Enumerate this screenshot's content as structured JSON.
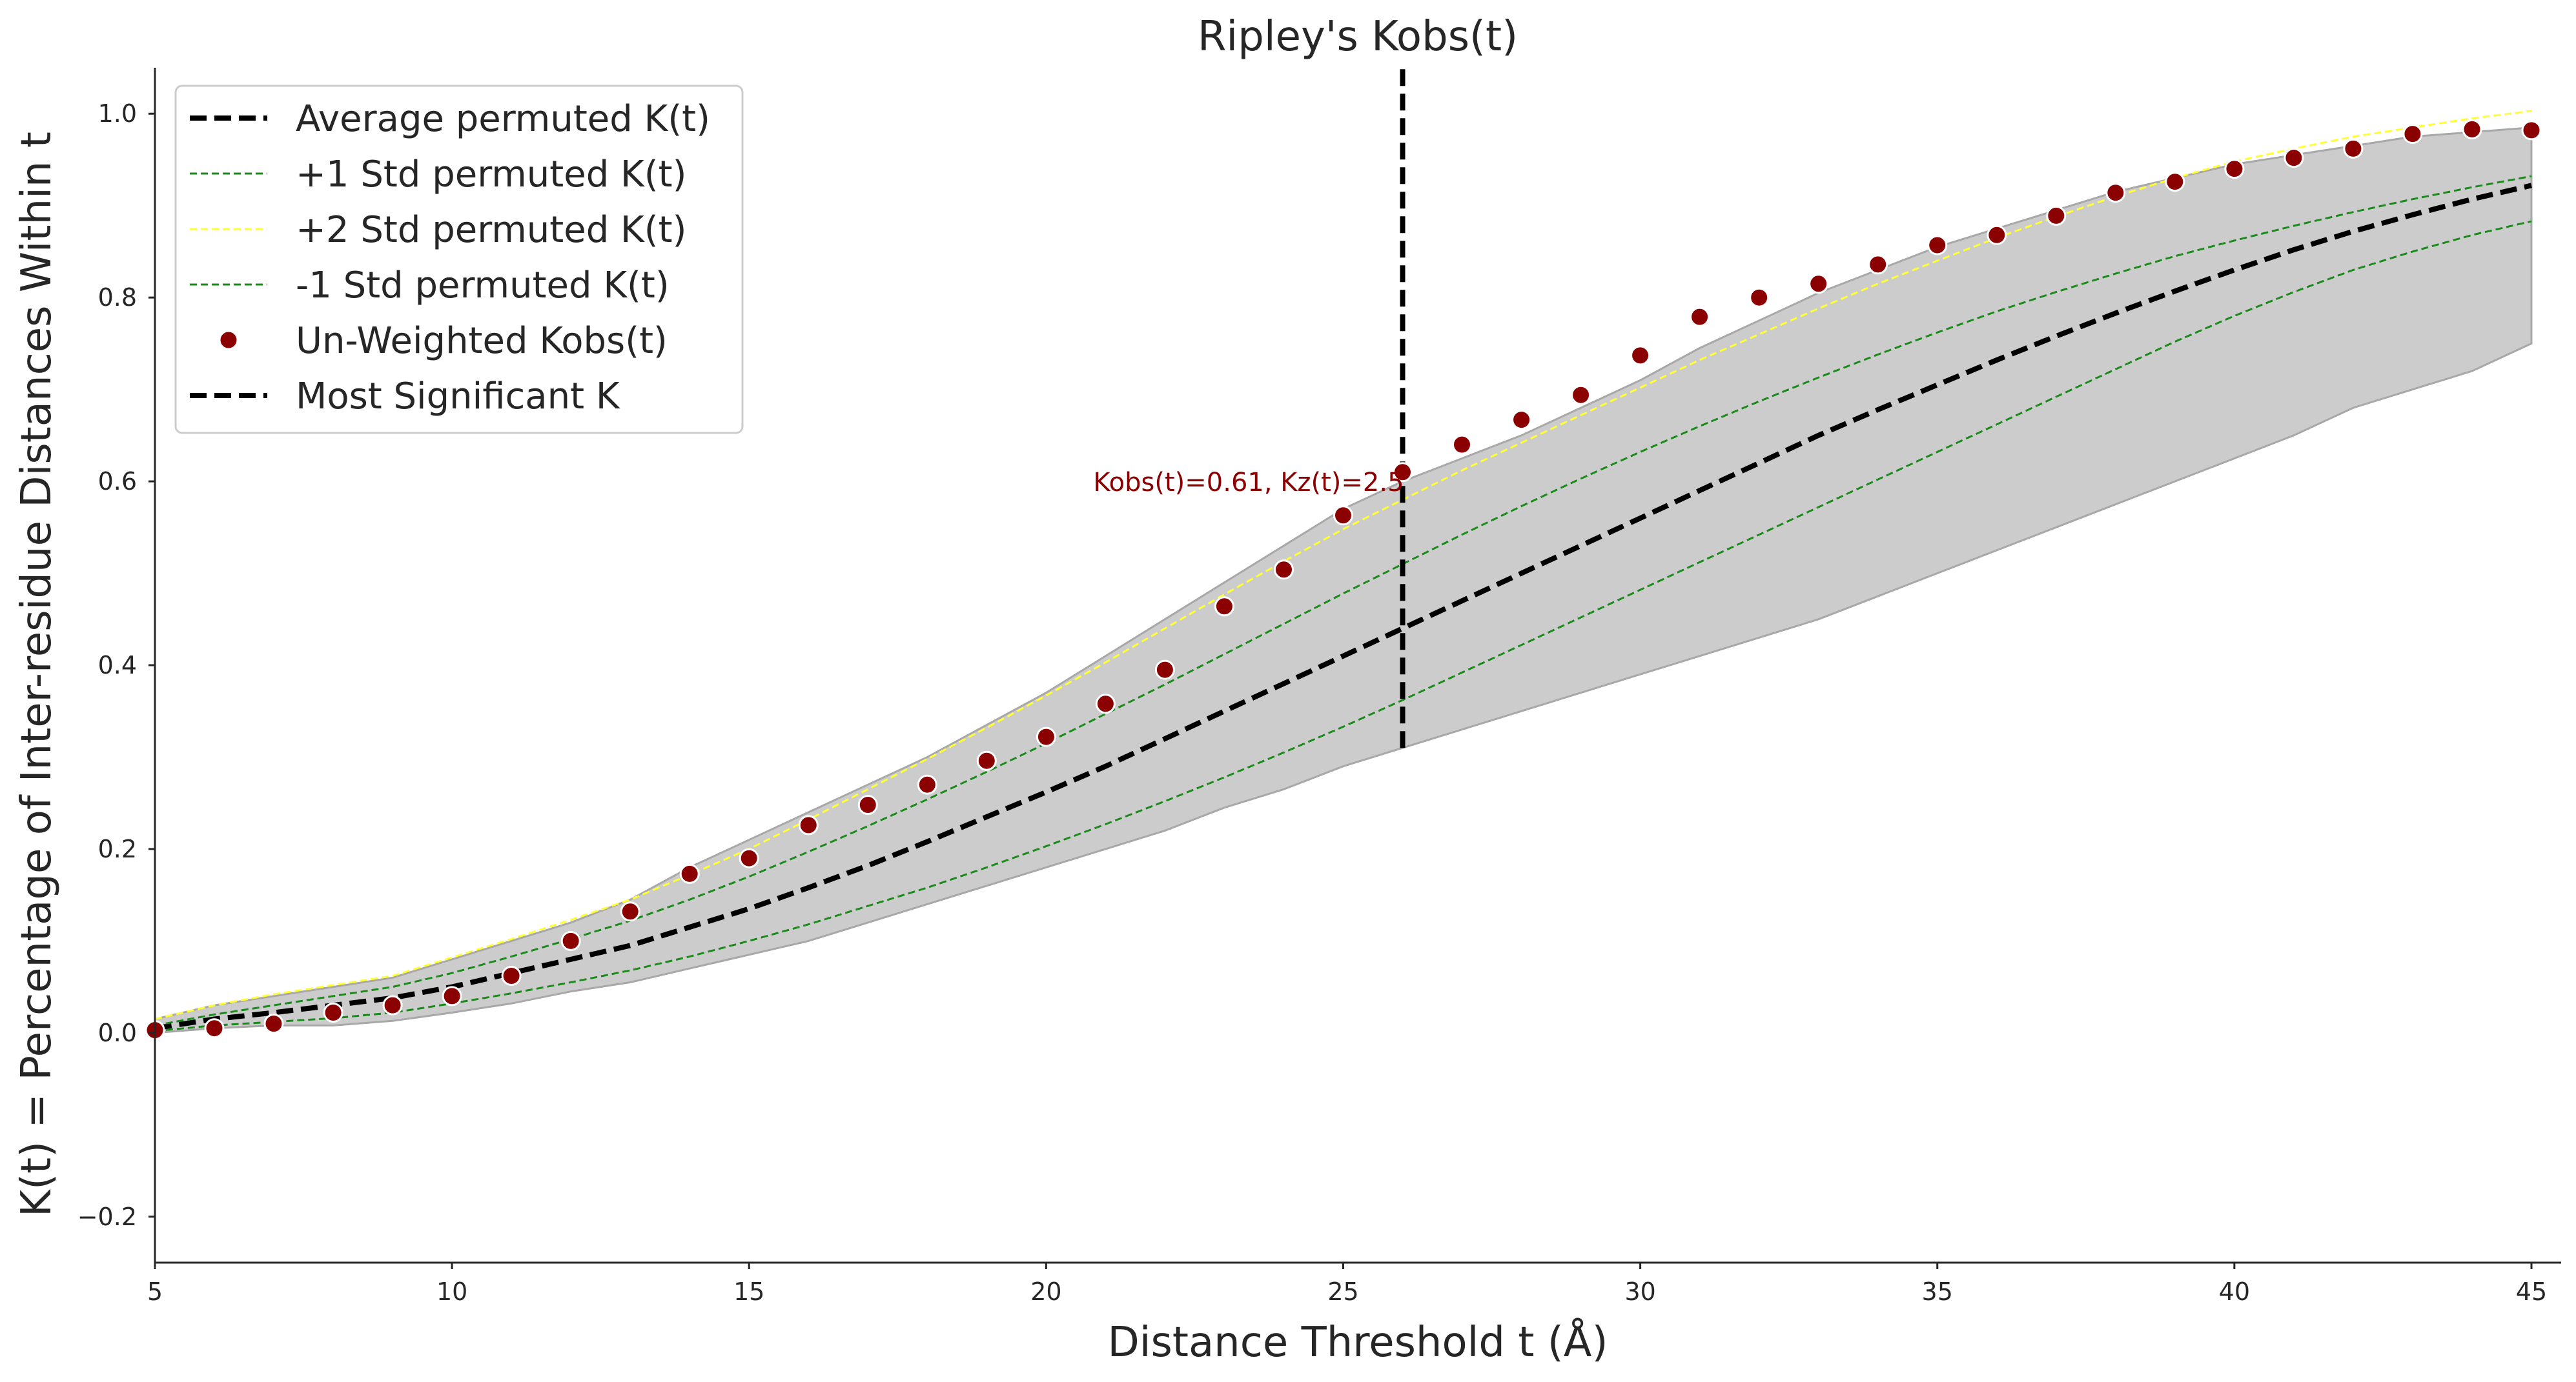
{
  "chart_data": {
    "type": "line",
    "title": "Ripley's Kobs(t)",
    "xlabel": "Distance Threshold t (Å)",
    "ylabel": "K(t) = Percentage of Inter-residue Distances Within t",
    "xlim": [
      5,
      45.5
    ],
    "ylim": [
      -0.25,
      1.05
    ],
    "xticks": [
      5,
      10,
      15,
      20,
      25,
      30,
      35,
      40,
      45
    ],
    "yticks": [
      -0.2,
      0.0,
      0.2,
      0.4,
      0.6,
      0.8,
      1.0
    ],
    "ytick_labels": [
      "−0.2",
      "0.0",
      "0.2",
      "0.4",
      "0.6",
      "0.8",
      "1.0"
    ],
    "grid": false,
    "legend_position": "upper-left",
    "x": [
      5,
      6,
      7,
      8,
      9,
      10,
      11,
      12,
      13,
      14,
      15,
      16,
      17,
      18,
      19,
      20,
      21,
      22,
      23,
      24,
      25,
      26,
      27,
      28,
      29,
      30,
      31,
      32,
      33,
      34,
      35,
      36,
      37,
      38,
      39,
      40,
      41,
      42,
      43,
      44,
      45
    ],
    "band": {
      "color": "#cccccc",
      "upper": [
        0.015,
        0.03,
        0.04,
        0.05,
        0.06,
        0.08,
        0.1,
        0.12,
        0.145,
        0.18,
        0.21,
        0.24,
        0.27,
        0.3,
        0.335,
        0.37,
        0.41,
        0.45,
        0.49,
        0.53,
        0.57,
        0.6,
        0.625,
        0.65,
        0.68,
        0.71,
        0.745,
        0.775,
        0.805,
        0.83,
        0.855,
        0.875,
        0.895,
        0.915,
        0.93,
        0.945,
        0.955,
        0.965,
        0.975,
        0.98,
        0.985
      ],
      "lower": [
        0.0,
        0.005,
        0.008,
        0.008,
        0.013,
        0.022,
        0.032,
        0.045,
        0.055,
        0.07,
        0.085,
        0.1,
        0.12,
        0.14,
        0.16,
        0.18,
        0.2,
        0.22,
        0.245,
        0.265,
        0.29,
        0.31,
        0.33,
        0.35,
        0.37,
        0.39,
        0.41,
        0.43,
        0.45,
        0.475,
        0.5,
        0.525,
        0.55,
        0.575,
        0.6,
        0.625,
        0.65,
        0.68,
        0.7,
        0.72,
        0.75
      ]
    },
    "series": [
      {
        "name": "Average permuted K(t)",
        "style": "dashed",
        "color": "#000000",
        "values": [
          0.005,
          0.015,
          0.022,
          0.03,
          0.038,
          0.05,
          0.065,
          0.08,
          0.095,
          0.115,
          0.135,
          0.158,
          0.182,
          0.208,
          0.235,
          0.262,
          0.29,
          0.32,
          0.35,
          0.38,
          0.41,
          0.44,
          0.47,
          0.5,
          0.53,
          0.56,
          0.59,
          0.62,
          0.65,
          0.678,
          0.705,
          0.732,
          0.758,
          0.783,
          0.807,
          0.83,
          0.852,
          0.872,
          0.89,
          0.907,
          0.922
        ]
      },
      {
        "name": "+1 Std permuted K(t)",
        "style": "dashed",
        "color": "#1a8a1a",
        "values": [
          0.008,
          0.02,
          0.03,
          0.04,
          0.05,
          0.065,
          0.083,
          0.102,
          0.122,
          0.145,
          0.17,
          0.197,
          0.225,
          0.254,
          0.284,
          0.315,
          0.347,
          0.379,
          0.412,
          0.445,
          0.478,
          0.51,
          0.542,
          0.573,
          0.603,
          0.632,
          0.66,
          0.687,
          0.713,
          0.738,
          0.762,
          0.785,
          0.806,
          0.826,
          0.845,
          0.862,
          0.878,
          0.893,
          0.907,
          0.92,
          0.932
        ]
      },
      {
        "name": "+2 Std permuted K(t)",
        "style": "dashed",
        "color": "#ffff33",
        "values": [
          0.015,
          0.03,
          0.042,
          0.052,
          0.062,
          0.082,
          0.102,
          0.123,
          0.145,
          0.172,
          0.2,
          0.232,
          0.265,
          0.298,
          0.332,
          0.367,
          0.403,
          0.44,
          0.477,
          0.513,
          0.548,
          0.58,
          0.612,
          0.642,
          0.672,
          0.702,
          0.732,
          0.76,
          0.788,
          0.815,
          0.84,
          0.865,
          0.888,
          0.91,
          0.93,
          0.948,
          0.962,
          0.975,
          0.985,
          0.995,
          1.003
        ]
      },
      {
        "name": "-1 Std permuted K(t)",
        "style": "dashed",
        "color": "#1a8a1a",
        "values": [
          0.002,
          0.008,
          0.012,
          0.016,
          0.022,
          0.032,
          0.043,
          0.055,
          0.068,
          0.083,
          0.1,
          0.118,
          0.138,
          0.158,
          0.18,
          0.203,
          0.227,
          0.252,
          0.278,
          0.305,
          0.333,
          0.362,
          0.392,
          0.422,
          0.452,
          0.482,
          0.512,
          0.542,
          0.572,
          0.602,
          0.632,
          0.662,
          0.692,
          0.722,
          0.752,
          0.78,
          0.806,
          0.83,
          0.85,
          0.868,
          0.883
        ]
      },
      {
        "name": "Un-Weighted Kobs(t)",
        "style": "scatter",
        "color": "#8b0000",
        "values": [
          0.003,
          0.005,
          0.01,
          0.022,
          0.03,
          0.04,
          0.062,
          0.1,
          0.132,
          0.173,
          0.19,
          0.226,
          0.248,
          0.27,
          0.296,
          0.322,
          0.358,
          0.395,
          0.464,
          0.504,
          0.563,
          0.61,
          0.64,
          0.667,
          0.694,
          0.737,
          0.779,
          0.8,
          0.815,
          0.836,
          0.857,
          0.868,
          0.889,
          0.914,
          0.926,
          0.94,
          0.952,
          0.962,
          0.978,
          0.983,
          0.982
        ]
      }
    ],
    "vline": {
      "name": "Most Significant K",
      "x": 26,
      "ymin": 0.31,
      "ymax": 1.05,
      "color": "#000000"
    },
    "annotation": {
      "text": "Kobs(t)=0.61, Kz(t)=2.5",
      "x": 26,
      "y": 0.61,
      "color": "#8b0000"
    },
    "legend": [
      {
        "label": "Average permuted K(t)",
        "kind": "line",
        "color": "#000000",
        "width": 8
      },
      {
        "label": "+1 Std permuted K(t)",
        "kind": "line",
        "color": "#1a8a1a",
        "width": 3
      },
      {
        "label": "+2 Std permuted K(t)",
        "kind": "line",
        "color": "#ffff33",
        "width": 3
      },
      {
        "label": "-1 Std permuted K(t)",
        "kind": "line",
        "color": "#1a8a1a",
        "width": 3
      },
      {
        "label": "Un-Weighted Kobs(t)",
        "kind": "marker",
        "color": "#8b0000"
      },
      {
        "label": "Most Significant K",
        "kind": "line",
        "color": "#000000",
        "width": 8
      }
    ]
  }
}
